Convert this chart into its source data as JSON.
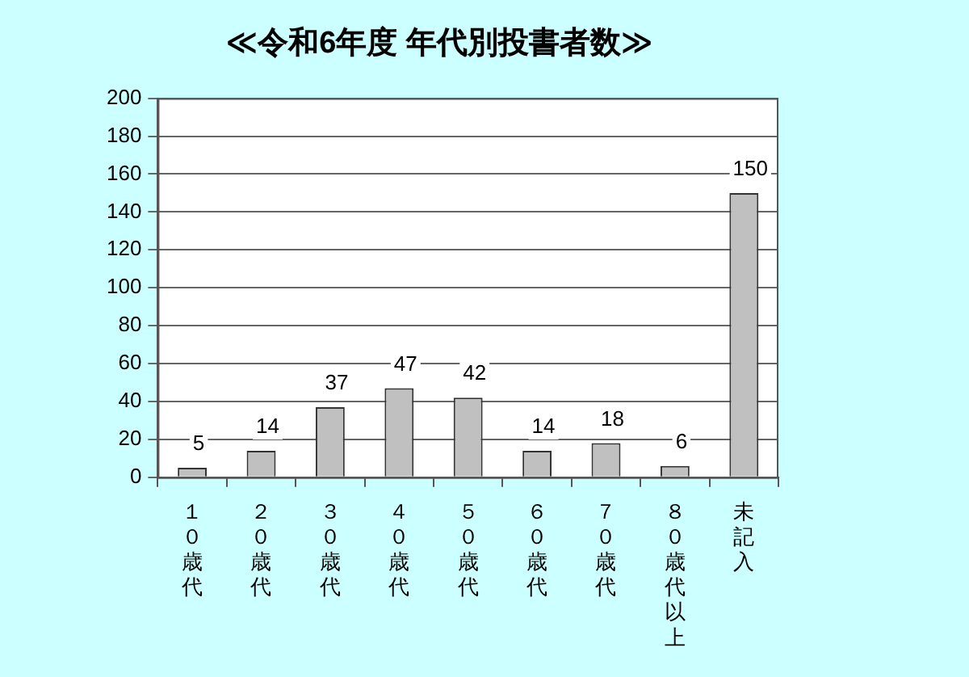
{
  "chart_data": {
    "type": "bar",
    "title": "≪令和6年度 年代別投書者数≫",
    "categories": [
      "１０歳代",
      "２０歳代",
      "３０歳代",
      "４０歳代",
      "５０歳代",
      "６０歳代",
      "７０歳代",
      "８０歳代以上",
      "未記入"
    ],
    "values": [
      5,
      14,
      37,
      47,
      42,
      14,
      18,
      6,
      150
    ],
    "color": "#c0c0c0",
    "ylim": [
      0,
      200
    ],
    "yticks": [
      0,
      20,
      40,
      60,
      80,
      100,
      120,
      140,
      160,
      180,
      200
    ],
    "grid": "y",
    "data_labels": true
  }
}
